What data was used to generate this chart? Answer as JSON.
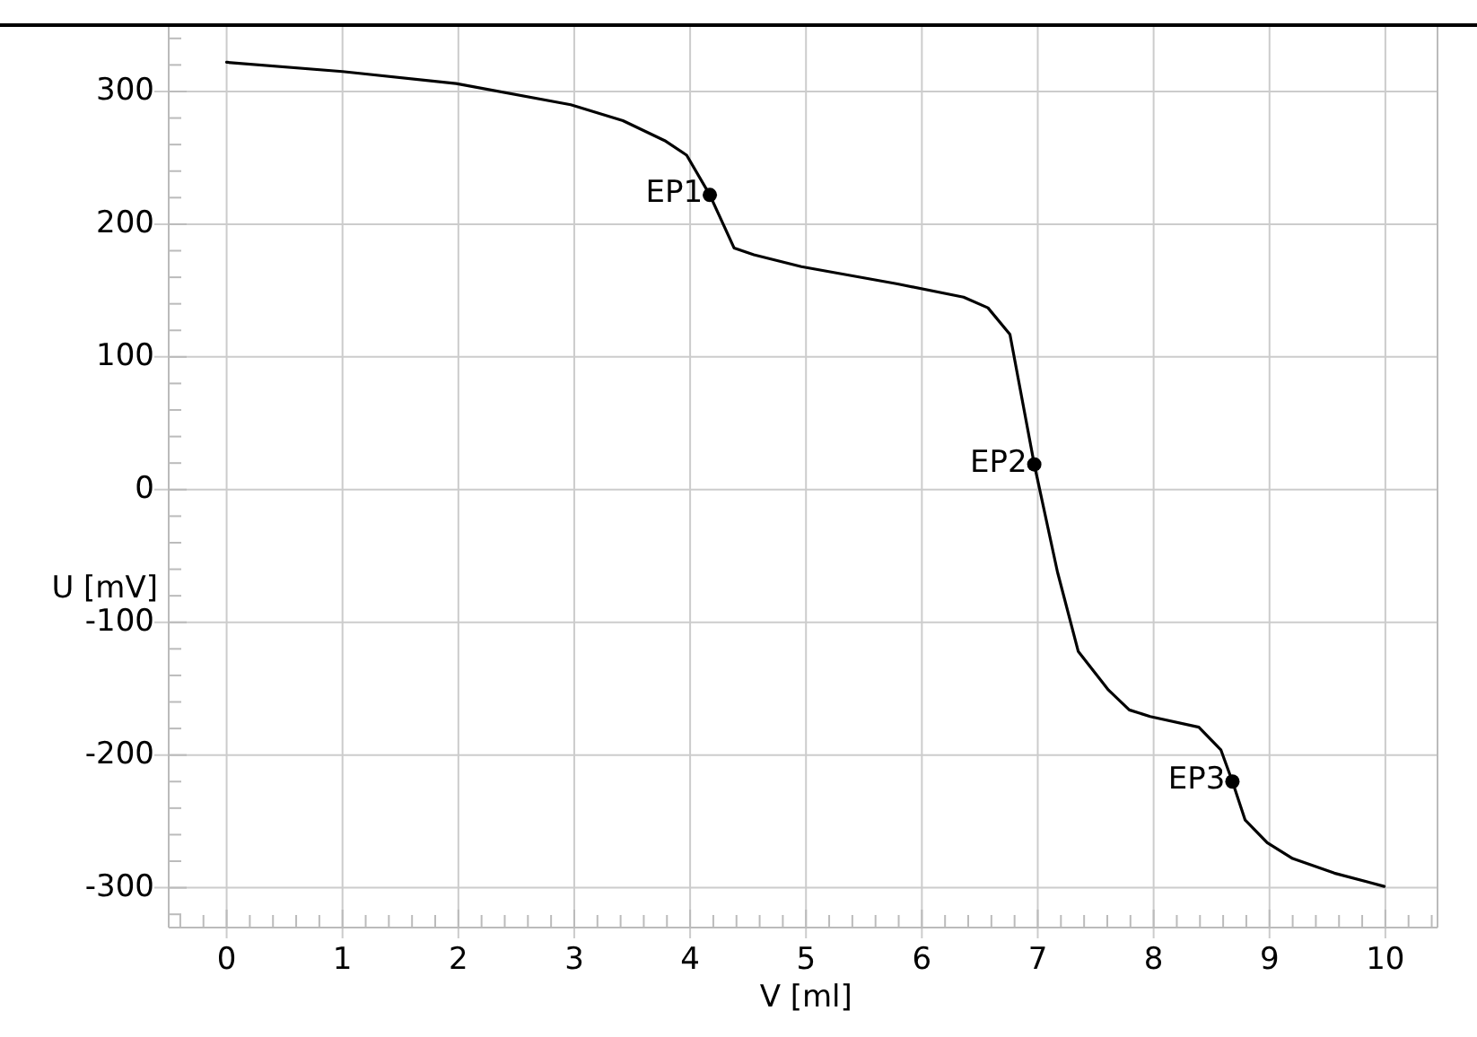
{
  "chart_data": {
    "type": "line",
    "xlabel": "V [ml]",
    "ylabel": "U [mV]",
    "xlim": [
      -0.5,
      10.45
    ],
    "ylim": [
      -330,
      350
    ],
    "xticks": [
      0,
      1,
      2,
      3,
      4,
      5,
      6,
      7,
      8,
      9,
      10,
      {
        "value": -0.4,
        "label": null
      },
      {
        "value": -0.2,
        "label": null
      },
      {
        "value": 0.2,
        "label": null
      },
      {
        "value": 0.4,
        "label": null
      },
      {
        "value": 0.6,
        "label": null
      },
      {
        "value": 0.8,
        "label": null
      },
      {
        "value": 1.2,
        "label": null
      },
      {
        "value": 1.4,
        "label": null
      },
      {
        "value": 1.6,
        "label": null
      },
      {
        "value": 1.8,
        "label": null
      },
      {
        "value": 2.2,
        "label": null
      },
      {
        "value": 2.4,
        "label": null
      },
      {
        "value": 2.6,
        "label": null
      },
      {
        "value": 2.8,
        "label": null
      },
      {
        "value": 3.2,
        "label": null
      },
      {
        "value": 3.4,
        "label": null
      },
      {
        "value": 3.6,
        "label": null
      },
      {
        "value": 3.8,
        "label": null
      },
      {
        "value": 4.2,
        "label": null
      },
      {
        "value": 4.4,
        "label": null
      },
      {
        "value": 4.6,
        "label": null
      },
      {
        "value": 4.8,
        "label": null
      },
      {
        "value": 5.2,
        "label": null
      },
      {
        "value": 5.4,
        "label": null
      },
      {
        "value": 5.6,
        "label": null
      },
      {
        "value": 5.8,
        "label": null
      },
      {
        "value": 6.2,
        "label": null
      },
      {
        "value": 6.4,
        "label": null
      },
      {
        "value": 6.6,
        "label": null
      },
      {
        "value": 6.8,
        "label": null
      },
      {
        "value": 7.2,
        "label": null
      },
      {
        "value": 7.4,
        "label": null
      },
      {
        "value": 7.6,
        "label": null
      },
      {
        "value": 7.8,
        "label": null
      },
      {
        "value": 8.2,
        "label": null
      },
      {
        "value": 8.4,
        "label": null
      },
      {
        "value": 8.6,
        "label": null
      },
      {
        "value": 8.8,
        "label": null
      },
      {
        "value": 9.2,
        "label": null
      },
      {
        "value": 9.4,
        "label": null
      },
      {
        "value": 9.6,
        "label": null
      },
      {
        "value": 9.8,
        "label": null
      },
      {
        "value": 10.2,
        "label": null
      },
      {
        "value": 10.4,
        "label": null
      }
    ],
    "yticks": [
      -300,
      -200,
      -100,
      0,
      100,
      200,
      300,
      {
        "value": -320,
        "label": null
      },
      {
        "value": -280,
        "label": null
      },
      {
        "value": -260,
        "label": null
      },
      {
        "value": -240,
        "label": null
      },
      {
        "value": -220,
        "label": null
      },
      {
        "value": -180,
        "label": null
      },
      {
        "value": -160,
        "label": null
      },
      {
        "value": -140,
        "label": null
      },
      {
        "value": -120,
        "label": null
      },
      {
        "value": -80,
        "label": null
      },
      {
        "value": -60,
        "label": null
      },
      {
        "value": -40,
        "label": null
      },
      {
        "value": -20,
        "label": null
      },
      {
        "value": 20,
        "label": null
      },
      {
        "value": 40,
        "label": null
      },
      {
        "value": 60,
        "label": null
      },
      {
        "value": 80,
        "label": null
      },
      {
        "value": 120,
        "label": null
      },
      {
        "value": 140,
        "label": null
      },
      {
        "value": 160,
        "label": null
      },
      {
        "value": 180,
        "label": null
      },
      {
        "value": 220,
        "label": null
      },
      {
        "value": 240,
        "label": null
      },
      {
        "value": 260,
        "label": null
      },
      {
        "value": 280,
        "label": null
      },
      {
        "value": 320,
        "label": null
      },
      {
        "value": 340,
        "label": null
      }
    ],
    "grid": true,
    "series": [
      {
        "color": "#000000",
        "marker": "none",
        "line_style": "solid",
        "x": [
          0,
          1.0,
          1.98,
          2.97,
          3.42,
          3.78,
          3.97,
          4.17,
          4.38,
          4.55,
          4.96,
          5.79,
          6.36,
          6.57,
          6.76,
          6.97,
          7.17,
          7.35,
          7.61,
          7.79,
          7.97,
          8.39,
          8.58,
          8.68,
          8.79,
          8.98,
          9.2,
          9.56,
          9.99
        ],
        "values": [
          322,
          315,
          306,
          290,
          278,
          263,
          252,
          222,
          182,
          177,
          168,
          155,
          145,
          137,
          117,
          19,
          -62,
          -122,
          -151,
          -166,
          -171,
          -179,
          -196,
          -220,
          -249,
          -266,
          -278,
          -289,
          -299
        ]
      },
      {
        "type": "scatter",
        "color": "#000000",
        "marker": "circle",
        "x": [
          4.17,
          6.97,
          8.68
        ],
        "values": [
          222,
          19,
          -220
        ]
      }
    ],
    "annotations": [
      {
        "text": "EP1",
        "x": 4.17,
        "y": 222
      },
      {
        "text": "EP2",
        "x": 6.97,
        "y": 19
      },
      {
        "text": "EP3",
        "x": 8.68,
        "y": -220
      }
    ]
  }
}
